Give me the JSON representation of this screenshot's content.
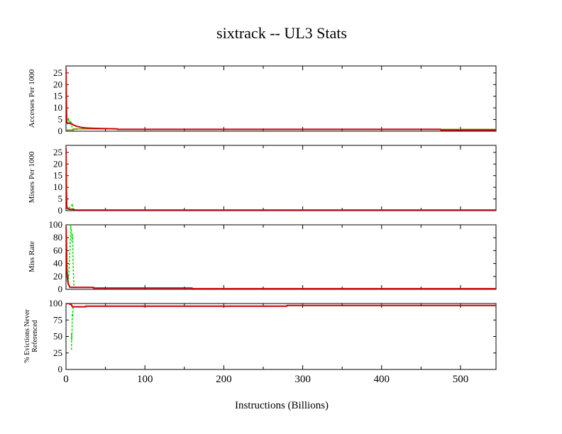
{
  "title": "sixtrack -- UL3  Stats",
  "colors": {
    "background": "#ffffff",
    "axis": "#000000",
    "series_red": "#cc0000",
    "series_green": "#00dd00",
    "series_olive": "#8a8a00"
  },
  "chart_data": [
    {
      "type": "line",
      "panel": "accesses",
      "ylabel": "Accesses Per 1000",
      "xlim": [
        0,
        545
      ],
      "ylim": [
        0,
        28
      ],
      "yticks": [
        0,
        5,
        10,
        15,
        20,
        25
      ],
      "grid": false,
      "series": [
        {
          "color": "#00dd00",
          "style": "dashed",
          "x": [
            0,
            1,
            2,
            3,
            4,
            5,
            6,
            7,
            8,
            10,
            12,
            15
          ],
          "y": [
            27,
            5,
            4.5,
            5.5,
            4,
            3.5,
            4.5,
            3,
            1,
            0.5,
            0.8,
            0.8
          ]
        },
        {
          "color": "#8a8a00",
          "style": "solid",
          "x": [
            0,
            10,
            10,
            65,
            65,
            545
          ],
          "y": [
            0.5,
            0.5,
            1.0,
            1.0,
            0.8,
            0.8
          ]
        },
        {
          "color": "#cc0000",
          "style": "solid",
          "x": [
            0,
            0.5,
            1,
            2,
            4,
            6,
            8,
            10,
            13,
            16,
            20,
            25,
            30,
            40,
            50,
            65,
            65,
            475,
            475,
            545
          ],
          "y": [
            27,
            10,
            4,
            3.3,
            3.5,
            3.2,
            3.0,
            2.6,
            2.2,
            1.9,
            1.6,
            1.4,
            1.3,
            1.2,
            1.1,
            1.0,
            0.8,
            0.8,
            0.5,
            0.5
          ]
        }
      ]
    },
    {
      "type": "line",
      "panel": "misses",
      "ylabel": "Misses Per 1000",
      "xlim": [
        0,
        545
      ],
      "ylim": [
        0,
        28
      ],
      "yticks": [
        0,
        5,
        10,
        15,
        20,
        25
      ],
      "grid": false,
      "series": [
        {
          "color": "#00dd00",
          "style": "dashed",
          "x": [
            0,
            1,
            3,
            5,
            7,
            8,
            9,
            10,
            12
          ],
          "y": [
            22,
            2,
            1,
            1.5,
            2,
            3,
            0.6,
            0.3,
            0.2
          ]
        },
        {
          "color": "#cc0000",
          "style": "solid",
          "x": [
            0,
            0.5,
            1,
            2,
            5,
            10,
            12,
            545
          ],
          "y": [
            27,
            8,
            1.5,
            0.8,
            0.6,
            0.5,
            0.2,
            0.2
          ]
        }
      ]
    },
    {
      "type": "line",
      "panel": "miss_rate",
      "ylabel": "Miss Rate",
      "xlim": [
        0,
        545
      ],
      "ylim": [
        0,
        100
      ],
      "yticks": [
        0,
        20,
        40,
        60,
        80,
        100
      ],
      "grid": false,
      "series": [
        {
          "color": "#00dd00",
          "style": "dashed",
          "x": [
            0,
            1,
            2,
            3,
            5,
            6,
            7,
            7.5,
            8,
            8.5,
            9,
            10,
            12
          ],
          "y": [
            98,
            60,
            20,
            10,
            60,
            98,
            90,
            75,
            85,
            80,
            40,
            5,
            3
          ]
        },
        {
          "color": "#cc0000",
          "style": "solid",
          "x": [
            0,
            0.5,
            1,
            2,
            3,
            5,
            10,
            35,
            35,
            160,
            160,
            545
          ],
          "y": [
            98,
            70,
            30,
            15,
            8,
            3,
            3,
            3,
            2,
            2,
            1,
            1
          ]
        }
      ]
    },
    {
      "type": "line",
      "panel": "evictions",
      "ylabel_line1": "% Evictions Never",
      "ylabel_line2": "Referenced",
      "xlabel": "Instructions (Billions)",
      "xlim": [
        0,
        545
      ],
      "ylim": [
        0,
        100
      ],
      "yticks": [
        0,
        25,
        50,
        75,
        100
      ],
      "xticks": [
        0,
        100,
        200,
        300,
        400,
        500
      ],
      "grid": false,
      "series": [
        {
          "color": "#00dd00",
          "style": "dashed",
          "x": [
            7,
            7,
            7.5,
            8,
            8.5,
            9
          ],
          "y": [
            30,
            55,
            45,
            85,
            80,
            95
          ]
        },
        {
          "color": "#cc0000",
          "style": "solid",
          "x": [
            0,
            3,
            5,
            7,
            8,
            25,
            25,
            280,
            280,
            545
          ],
          "y": [
            100,
            100,
            99,
            98,
            95,
            95,
            96,
            96,
            97,
            97
          ]
        }
      ]
    }
  ]
}
